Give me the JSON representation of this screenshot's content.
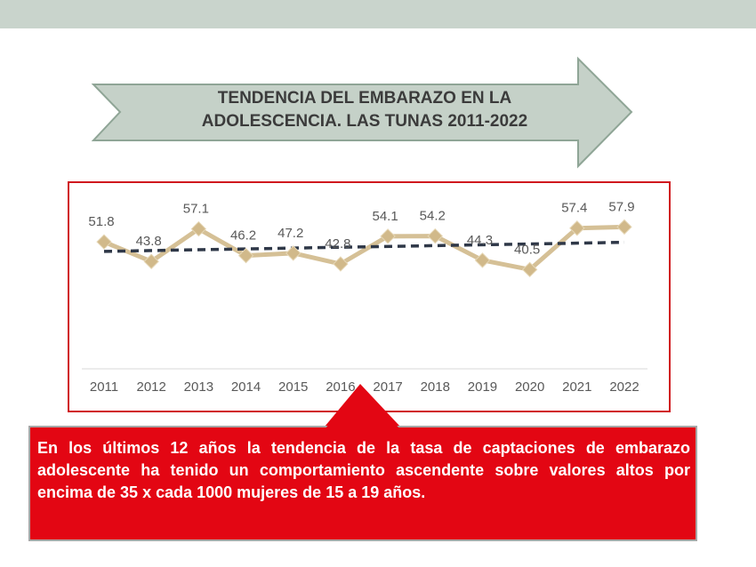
{
  "chart_data": {
    "type": "line",
    "title": "TENDENCIA DEL EMBARAZO EN LA ADOLESCENCIA. LAS TUNAS 2011-2022",
    "categories": [
      "2011",
      "2012",
      "2013",
      "2014",
      "2015",
      "2016",
      "2017",
      "2018",
      "2019",
      "2020",
      "2021",
      "2022"
    ],
    "values": [
      51.8,
      43.8,
      57.1,
      46.2,
      47.2,
      42.8,
      54.1,
      54.2,
      44.3,
      40.5,
      57.4,
      57.9
    ],
    "color": "#d5c096",
    "ylim": [
      0,
      70
    ],
    "trendline": true,
    "note": "En los últimos 12 años la tendencia de la tasa de captaciones de embarazo adolescente ha tenido un comportamiento ascendente sobre valores altos por encima de 35 x  cada 1000 mujeres de 15 a 19 años."
  }
}
